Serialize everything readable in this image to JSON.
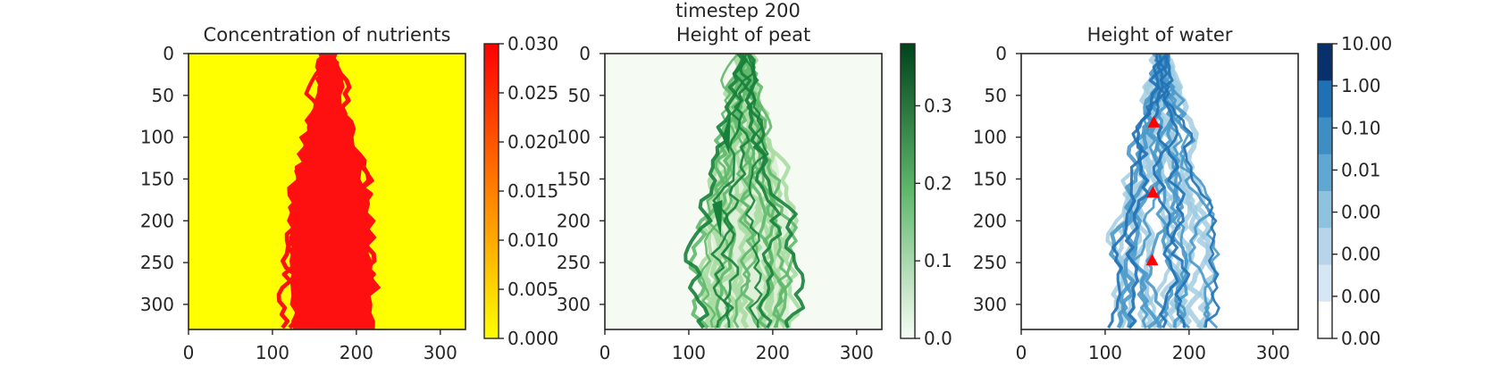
{
  "suptitle": "timestep 200",
  "colors": {
    "nutrient_bg": "#ffff00",
    "nutrient_fg": "#ff1010",
    "peat_bg": "#f5fbf2",
    "peat_light": "#a9dca2",
    "peat_mid": "#5fb86a",
    "peat_dark": "#17813b",
    "water_light": "#9ecae1",
    "water_mid": "#4a98c9",
    "water_dark": "#2171b5",
    "marker": "#ff0000",
    "frame": "#262626"
  },
  "chart_data": [
    {
      "type": "heatmap",
      "title": "Concentration of nutrients",
      "colormap": "autumn_r",
      "xlim": [
        0,
        330
      ],
      "ylim": [
        330,
        0
      ],
      "xticks": [
        "0",
        "100",
        "200",
        "300"
      ],
      "yticks": [
        "0",
        "50",
        "100",
        "150",
        "200",
        "250",
        "300"
      ],
      "colorbar": {
        "range": [
          0.0,
          0.03
        ],
        "ticks": [
          "0.030",
          "0.025",
          "0.020",
          "0.015",
          "0.010",
          "0.005",
          "0.000"
        ]
      },
      "channel": {
        "top": {
          "center": 167,
          "halfwidth": 2
        },
        "widest": {
          "y": 180,
          "xmin": 125,
          "xmax": 225
        },
        "bottom": {
          "xmin": 125,
          "xmax": 235
        },
        "value_inside": 0.03,
        "value_outside": 0.0
      }
    },
    {
      "type": "heatmap",
      "title": "Height of peat",
      "colormap": "Greens",
      "xlim": [
        0,
        330
      ],
      "ylim": [
        330,
        0
      ],
      "xticks": [
        "0",
        "100",
        "200",
        "300"
      ],
      "yticks": [
        "0",
        "50",
        "100",
        "150",
        "200",
        "250",
        "300"
      ],
      "colorbar": {
        "range": [
          0.0,
          0.38
        ],
        "ticks": [
          "0.3",
          "0.2",
          "0.1",
          "0.0"
        ]
      },
      "max_value_approx": 0.37
    },
    {
      "type": "heatmap",
      "title": "Height of water",
      "colormap": "Blues",
      "xlim": [
        0,
        330
      ],
      "ylim": [
        330,
        0
      ],
      "xticks": [
        "0",
        "100",
        "200",
        "300"
      ],
      "yticks": [
        "0",
        "50",
        "100",
        "150",
        "200",
        "250",
        "300"
      ],
      "colorbar": {
        "scale": "log",
        "ticks": [
          "10.00",
          "1.00",
          "0.10",
          "0.01",
          "0.00",
          "0.00",
          "0.00",
          "0.00"
        ],
        "bands": [
          "#08306b",
          "#2070b4",
          "#3e8ec4",
          "#60a7d2",
          "#8fc2de",
          "#b7d4ea",
          "#d6e6f4",
          "#ffffff"
        ]
      },
      "markers": {
        "shape": "triangle",
        "points": [
          {
            "x": 158,
            "y": 83
          },
          {
            "x": 157,
            "y": 167
          },
          {
            "x": 156,
            "y": 248
          }
        ]
      }
    }
  ]
}
